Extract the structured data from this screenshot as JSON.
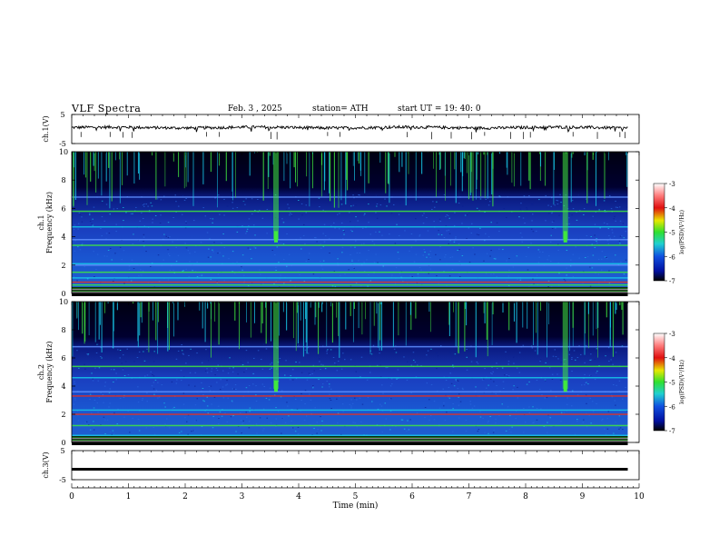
{
  "header": {
    "title": "VLF Spectra",
    "date": "Feb. 3  , 2025",
    "station": "station= ATH",
    "start": "start  UT  =    19: 40: 0"
  },
  "colors": {
    "background": "#000000",
    "low": "#1840c8",
    "mid": "#18c8e8",
    "high": "#40e840",
    "peak": "#e83020"
  },
  "chart_data": [
    {
      "type": "line",
      "panel": "ch1-voltage",
      "ylabel": "ch.1(V)",
      "yticks": [
        "5",
        "-5"
      ],
      "ylim": [
        -5,
        5
      ],
      "xlim": [
        0,
        10
      ],
      "trace_level": 0.5,
      "series": [
        {
          "values_range": [
            -0.2,
            1.2
          ]
        }
      ]
    },
    {
      "type": "heatmap",
      "panel": "ch1-spectrogram",
      "ylabel_channel": "ch.1",
      "ylabel": "Frequency  (kHz)",
      "yticks": [
        "0",
        "2",
        "4",
        "6",
        "8",
        "10"
      ],
      "ylim": [
        0,
        10
      ],
      "xlim": [
        0,
        10
      ],
      "data_end_min": 9.8,
      "colorbar": {
        "label": "log(PSD)(V²/Hz)",
        "ticks": [
          "-3",
          "-4",
          "-5",
          "-6",
          "-7"
        ],
        "range": [
          -7,
          -3
        ]
      },
      "bands_khz": [
        0.3,
        0.6,
        0.8,
        1.1,
        1.5,
        2.0,
        2.1,
        3.4,
        3.8,
        4.7,
        5.8,
        6.8
      ],
      "bursts_min": [
        3.6,
        8.7
      ]
    },
    {
      "type": "heatmap",
      "panel": "ch2-spectrogram",
      "ylabel_channel": "ch.2",
      "ylabel": "Frequency  (kHz)",
      "yticks": [
        "0",
        "2",
        "4",
        "6",
        "8",
        "10"
      ],
      "ylim": [
        0,
        10
      ],
      "xlim": [
        0,
        10
      ],
      "data_end_min": 9.8,
      "colorbar": {
        "label": "log(PSD)(V²/Hz)",
        "ticks": [
          "-3",
          "-4",
          "-5",
          "-6",
          "-7"
        ],
        "range": [
          -7,
          -3
        ]
      },
      "bands_khz": [
        0.5,
        1.2,
        2.0,
        2.3,
        3.3,
        3.6,
        4.6,
        5.4,
        6.8
      ],
      "bursts_min": [
        3.6,
        8.7
      ]
    },
    {
      "type": "line",
      "panel": "ch3-voltage",
      "ylabel": "ch.3(V)",
      "yticks": [
        "5",
        "-5"
      ],
      "ylim": [
        -5,
        5
      ],
      "xlim": [
        0,
        10
      ],
      "xlabel": "Time  (min)",
      "xticks": [
        "0",
        "1",
        "2",
        "3",
        "4",
        "5",
        "6",
        "7",
        "8",
        "9",
        "10"
      ],
      "series": [
        {
          "values": [
            -1.4,
            -1.4
          ]
        }
      ]
    }
  ]
}
